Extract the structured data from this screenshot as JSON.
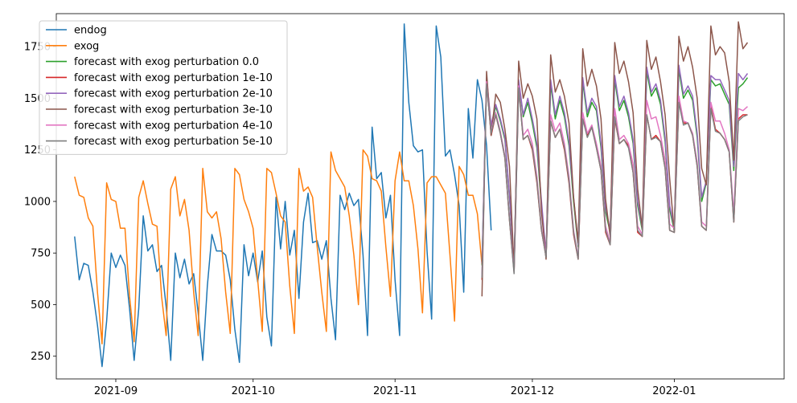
{
  "chart_data": {
    "type": "line",
    "title": "",
    "xlabel": "",
    "ylabel": "",
    "xlim": [
      "2021-08-19",
      "2022-01-25"
    ],
    "ylim": [
      140,
      1910
    ],
    "grid": false,
    "legend_position": "upper-left",
    "xticks": [
      "2021-09-01",
      "2021-10-01",
      "2021-11-01",
      "2021-12-01",
      "2022-01-01"
    ],
    "xtick_labels": [
      "2021-09",
      "2021-10",
      "2021-11",
      "2021-12",
      "2022-01"
    ],
    "yticks": [
      250,
      500,
      750,
      1000,
      1250,
      1500,
      1750
    ],
    "series": [
      {
        "name": "endog",
        "color": "#1f77b4",
        "start": "2021-08-23",
        "values": [
          830,
          620,
          700,
          690,
          560,
          400,
          200,
          420,
          750,
          680,
          740,
          690,
          480,
          230,
          480,
          930,
          760,
          790,
          660,
          690,
          490,
          230,
          750,
          630,
          720,
          600,
          650,
          460,
          230,
          590,
          840,
          760,
          760,
          740,
          620,
          380,
          220,
          790,
          640,
          750,
          610,
          760,
          440,
          300,
          1020,
          770,
          1000,
          740,
          860,
          530,
          900,
          1040,
          800,
          810,
          720,
          810,
          530,
          330,
          1030,
          960,
          1040,
          980,
          1010,
          740,
          350,
          1360,
          1110,
          1140,
          920,
          1030,
          620,
          350,
          1860,
          1480,
          1270,
          1240,
          1250,
          760,
          430,
          1850,
          1700,
          1220,
          1250,
          1130,
          980,
          560,
          1450,
          1210,
          1590,
          1490,
          1270,
          860
        ]
      },
      {
        "name": "exog",
        "color": "#ff7f0e",
        "start": "2021-08-23",
        "values": [
          1120,
          1030,
          1020,
          920,
          880,
          560,
          310,
          1090,
          1010,
          1000,
          870,
          870,
          540,
          320,
          1020,
          1100,
          990,
          890,
          880,
          540,
          350,
          1060,
          1120,
          930,
          1010,
          860,
          560,
          350,
          1160,
          950,
          920,
          950,
          820,
          560,
          360,
          1160,
          1130,
          1010,
          950,
          870,
          620,
          370,
          1160,
          1140,
          1040,
          930,
          900,
          590,
          360,
          1160,
          1050,
          1070,
          1020,
          780,
          560,
          370,
          1240,
          1150,
          1110,
          1070,
          930,
          740,
          500,
          1250,
          1220,
          1110,
          1100,
          1050,
          780,
          540,
          1100,
          1240,
          1100,
          1100,
          980,
          770,
          460,
          1090,
          1120,
          1120,
          1080,
          1040,
          740,
          420,
          1170,
          1130,
          1030,
          1030,
          940,
          690
        ]
      },
      {
        "name": "forecast with exog perturbation 0.0",
        "color": "#2ca02c",
        "start": "2021-11-20",
        "values": [
          690,
          1590,
          1360,
          1460,
          1390,
          1300,
          1020,
          690,
          1580,
          1410,
          1480,
          1380,
          1260,
          980,
          730,
          1570,
          1400,
          1490,
          1410,
          1270,
          1000,
          780,
          1580,
          1410,
          1480,
          1440,
          1260,
          950,
          850,
          1590,
          1440,
          1490,
          1410,
          1280,
          980,
          860,
          1630,
          1510,
          1550,
          1470,
          1290,
          960,
          860,
          1640,
          1500,
          1540,
          1490,
          1310,
          1000,
          1090,
          1590,
          1560,
          1570,
          1520,
          1470,
          1150,
          1550,
          1570,
          1600
        ]
      },
      {
        "name": "forecast with exog perturbation 1e-10",
        "color": "#d62728",
        "start": "2021-11-20",
        "values": [
          620,
          1580,
          1320,
          1420,
          1330,
          1210,
          910,
          660,
          1560,
          1300,
          1320,
          1250,
          1090,
          860,
          730,
          1390,
          1310,
          1350,
          1250,
          1090,
          840,
          720,
          1400,
          1320,
          1360,
          1260,
          1150,
          850,
          790,
          1400,
          1280,
          1300,
          1270,
          1140,
          850,
          830,
          1420,
          1300,
          1320,
          1290,
          1160,
          860,
          850,
          1480,
          1380,
          1380,
          1320,
          1170,
          880,
          860,
          1460,
          1350,
          1330,
          1300,
          1240,
          900,
          1400,
          1420,
          1420
        ]
      },
      {
        "name": "forecast with exog perturbation 2e-10",
        "color": "#9467bd",
        "start": "2021-11-20",
        "values": [
          700,
          1600,
          1370,
          1470,
          1400,
          1310,
          1030,
          700,
          1590,
          1420,
          1500,
          1400,
          1280,
          1000,
          740,
          1590,
          1420,
          1510,
          1430,
          1290,
          1020,
          790,
          1600,
          1430,
          1500,
          1460,
          1280,
          970,
          860,
          1610,
          1460,
          1510,
          1430,
          1300,
          1000,
          870,
          1650,
          1530,
          1570,
          1490,
          1310,
          980,
          870,
          1660,
          1520,
          1560,
          1510,
          1330,
          1020,
          1100,
          1610,
          1590,
          1590,
          1540,
          1490,
          1170,
          1620,
          1590,
          1620
        ]
      },
      {
        "name": "forecast with exog perturbation 3e-10",
        "color": "#8c564b",
        "start": "2021-11-20",
        "values": [
          540,
          1630,
          1320,
          1520,
          1480,
          1350,
          1170,
          670,
          1680,
          1500,
          1570,
          1510,
          1400,
          950,
          720,
          1710,
          1530,
          1590,
          1510,
          1380,
          1020,
          800,
          1740,
          1560,
          1640,
          1560,
          1400,
          1010,
          830,
          1770,
          1620,
          1680,
          1580,
          1430,
          1060,
          870,
          1780,
          1640,
          1700,
          1580,
          1420,
          1110,
          850,
          1800,
          1680,
          1750,
          1650,
          1500,
          1160,
          1080,
          1850,
          1710,
          1750,
          1720,
          1580,
          1200,
          1870,
          1740,
          1770
        ]
      },
      {
        "name": "forecast with exog perturbation 4e-10",
        "color": "#e377c2",
        "start": "2021-11-20",
        "values": [
          640,
          1580,
          1340,
          1430,
          1340,
          1220,
          920,
          660,
          1560,
          1320,
          1350,
          1280,
          1120,
          870,
          740,
          1420,
          1340,
          1380,
          1280,
          1120,
          860,
          730,
          1430,
          1330,
          1370,
          1280,
          1170,
          880,
          800,
          1450,
          1300,
          1320,
          1280,
          1180,
          880,
          840,
          1490,
          1400,
          1410,
          1320,
          1200,
          890,
          870,
          1510,
          1390,
          1380,
          1330,
          1190,
          900,
          880,
          1480,
          1390,
          1390,
          1330,
          1250,
          940,
          1450,
          1440,
          1460
        ]
      },
      {
        "name": "forecast with exog perturbation 5e-10",
        "color": "#7f7f7f",
        "start": "2021-11-20",
        "values": [
          630,
          1570,
          1330,
          1420,
          1330,
          1210,
          910,
          650,
          1550,
          1300,
          1320,
          1260,
          1100,
          860,
          730,
          1390,
          1310,
          1350,
          1260,
          1100,
          850,
          720,
          1400,
          1310,
          1360,
          1260,
          1150,
          860,
          790,
          1410,
          1280,
          1300,
          1260,
          1140,
          860,
          830,
          1420,
          1300,
          1310,
          1290,
          1160,
          860,
          850,
          1480,
          1370,
          1380,
          1320,
          1170,
          880,
          860,
          1450,
          1340,
          1330,
          1300,
          1240,
          900,
          1390,
          1410,
          1420
        ]
      }
    ]
  }
}
